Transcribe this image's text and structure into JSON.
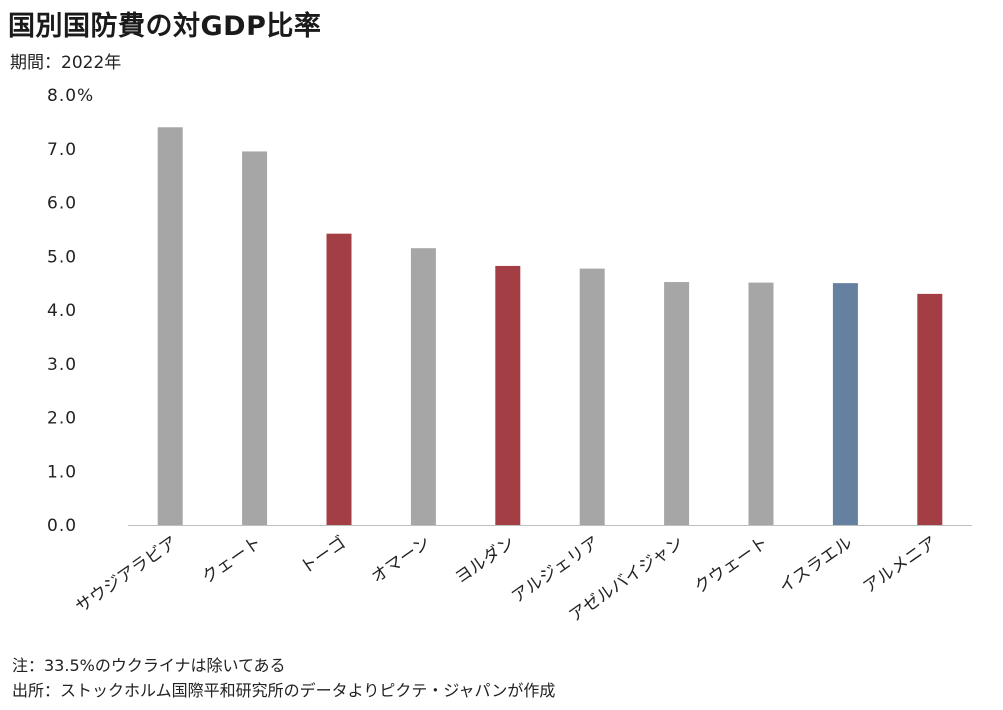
{
  "header": {
    "title": "国別国防費の対GDP比率",
    "period": "期間：2022年"
  },
  "footer": {
    "note": "注：33.5%のウクライナは除いてある",
    "source": "出所：ストックホルム国際平和研究所のデータよりピクテ・ジャパンが作成"
  },
  "colors": {
    "gray": "#a6a6a6",
    "red": "#a43e45",
    "blue": "#6680a0",
    "axis": "#bfbfbf"
  },
  "chart_data": {
    "type": "bar",
    "title": "国別国防費の対GDP比率",
    "subtitle": "期間：2022年",
    "categories": [
      "サウジアラビア",
      "クェート",
      "トーゴ",
      "オマーン",
      "ヨルダン",
      "アルジェリア",
      "アゼルバイジャン",
      "クウェート",
      "イスラエル",
      "アルメニア"
    ],
    "values": [
      7.4,
      6.95,
      5.42,
      5.15,
      4.82,
      4.77,
      4.52,
      4.51,
      4.5,
      4.3
    ],
    "bar_colors": [
      "gray",
      "gray",
      "red",
      "gray",
      "red",
      "gray",
      "gray",
      "gray",
      "blue",
      "red"
    ],
    "ylim": [
      0,
      8
    ],
    "yticks": [
      "0.0",
      "1.0",
      "2.0",
      "3.0",
      "4.0",
      "5.0",
      "6.0",
      "7.0",
      "8.0%"
    ],
    "xlabel": "",
    "ylabel": "",
    "grid": false
  }
}
